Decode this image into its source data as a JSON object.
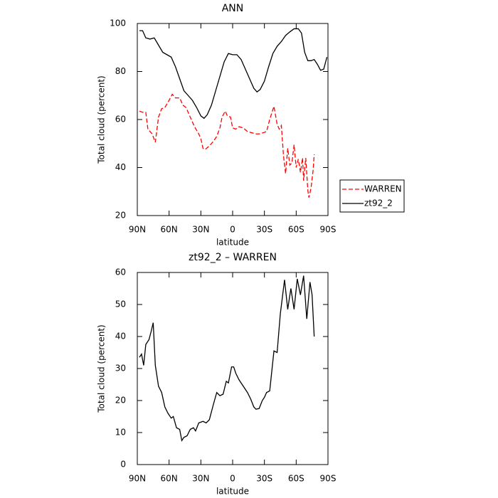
{
  "chart_data": [
    {
      "type": "line",
      "title": "ANN",
      "xlabel": "latitude",
      "ylabel": "Total cloud (percent)",
      "xlim": [
        90,
        -90
      ],
      "ylim": [
        20,
        100
      ],
      "xticks": [
        {
          "value": 90,
          "label": "90N"
        },
        {
          "value": 60,
          "label": "60N"
        },
        {
          "value": 30,
          "label": "30N"
        },
        0,
        {
          "value": -30,
          "label": "30S"
        },
        {
          "value": -60,
          "label": "60S"
        },
        {
          "value": -90,
          "label": "90S"
        }
      ],
      "yticks": [
        20,
        40,
        60,
        80,
        100
      ],
      "legend": "right",
      "series": [
        {
          "name": "WARREN",
          "color": "#ff0000",
          "line_style": "dashed",
          "x": [
            88,
            85,
            82,
            80,
            76,
            73,
            70,
            67,
            64,
            60,
            57,
            54,
            50,
            47,
            44,
            40,
            36,
            32,
            30,
            28,
            26,
            22,
            18,
            15,
            12,
            10,
            7,
            5,
            2,
            0,
            -3,
            -6,
            -10,
            -14,
            -18,
            -22,
            -25,
            -29,
            -32,
            -35,
            -39,
            -42,
            -44,
            -46,
            -48,
            -50,
            -52,
            -54,
            -56,
            -58,
            -60,
            -62,
            -64,
            -66,
            -67,
            -69,
            -71,
            -72,
            -74,
            -76,
            -77
          ],
          "values": [
            63.5,
            63,
            63,
            56,
            54,
            50.5,
            61,
            64.5,
            65,
            68,
            70.5,
            69,
            69,
            66,
            65,
            61,
            57,
            54,
            52,
            48,
            47.5,
            49,
            51,
            53,
            56.5,
            61,
            63.5,
            61.5,
            61,
            56.5,
            56,
            57,
            56.5,
            55,
            54.5,
            54,
            54,
            54.5,
            55,
            60,
            65.5,
            58,
            56,
            57.5,
            45,
            37.5,
            48,
            41,
            42,
            49.5,
            40,
            43.5,
            38,
            44,
            34.5,
            44,
            30.5,
            27.5,
            31.5,
            39,
            45.5
          ]
        },
        {
          "name": "zt92_2",
          "color": "#000000",
          "line_style": "solid",
          "x": [
            88,
            85,
            82,
            78,
            74,
            70,
            66,
            62,
            58,
            54,
            50,
            46,
            42,
            38,
            34,
            30,
            27,
            24,
            20,
            16,
            12,
            8,
            4,
            0,
            -4,
            -8,
            -12,
            -16,
            -20,
            -23,
            -26,
            -30,
            -34,
            -38,
            -42,
            -46,
            -50,
            -54,
            -58,
            -62,
            -65,
            -68,
            -71,
            -74,
            -77,
            -80,
            -83,
            -86,
            -89
          ],
          "values": [
            97,
            97,
            94,
            93.5,
            94,
            91,
            88,
            87,
            86,
            82,
            77,
            72,
            70,
            68,
            65,
            61.5,
            60.5,
            62,
            66,
            72,
            78,
            84,
            87.5,
            87,
            87,
            85,
            81,
            77,
            73,
            71.5,
            72.5,
            76,
            82,
            87.5,
            90.5,
            92.5,
            95,
            96.5,
            97.8,
            97.8,
            96,
            88,
            84.5,
            84.5,
            85,
            83,
            80.5,
            81,
            86
          ]
        }
      ]
    },
    {
      "type": "line",
      "title": "zt92_2 – WARREN",
      "xlabel": "latitude",
      "ylabel": "Total cloud (percent)",
      "xlim": [
        90,
        -90
      ],
      "ylim": [
        0,
        60
      ],
      "xticks": [
        {
          "value": 90,
          "label": "90N"
        },
        {
          "value": 60,
          "label": "60N"
        },
        {
          "value": 30,
          "label": "30N"
        },
        0,
        {
          "value": -30,
          "label": "30S"
        },
        {
          "value": -60,
          "label": "60S"
        },
        {
          "value": -90,
          "label": "90S"
        }
      ],
      "yticks": [
        0,
        10,
        20,
        30,
        40,
        50,
        60
      ],
      "color": "#000000",
      "x": [
        88,
        86,
        84,
        82,
        79,
        77,
        75,
        73,
        70,
        67,
        64,
        61,
        58,
        56,
        53,
        50,
        48,
        46,
        43,
        40,
        37,
        35,
        32,
        28,
        25,
        22,
        18,
        15,
        12,
        9,
        6,
        4,
        1,
        -1,
        -3,
        -6,
        -10,
        -14,
        -17,
        -20,
        -22,
        -25,
        -28,
        -30,
        -32,
        -35,
        -39,
        -42,
        -45,
        -49,
        -52,
        -55,
        -58,
        -61,
        -64,
        -67,
        -70,
        -73,
        -75,
        -77
      ],
      "values": [
        33.5,
        34.5,
        31,
        37.5,
        39,
        41.5,
        44.3,
        31,
        24.5,
        22.5,
        18,
        16,
        14.5,
        15,
        11.5,
        11,
        7.5,
        8.5,
        9,
        11,
        11.5,
        10.5,
        13,
        13.5,
        13,
        14,
        19,
        22.5,
        21.5,
        22,
        26,
        25.5,
        30.5,
        30.5,
        28.5,
        26.5,
        24.5,
        22.5,
        20.5,
        18,
        17.3,
        17.5,
        20,
        21,
        22.5,
        23,
        35.5,
        35,
        47,
        57.7,
        48.5,
        55,
        48.5,
        58,
        53,
        59,
        45.5,
        57,
        53,
        40
      ]
    }
  ]
}
